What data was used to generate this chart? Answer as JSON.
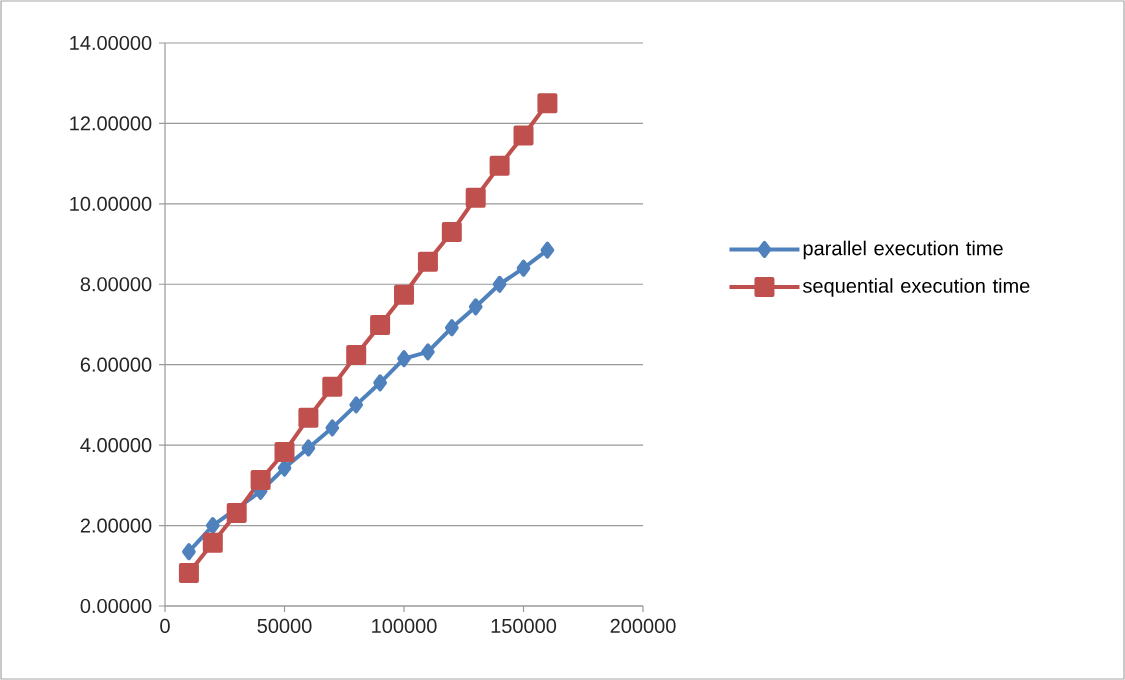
{
  "chart_data": {
    "type": "line",
    "x": [
      10000,
      20000,
      30000,
      40000,
      50000,
      60000,
      70000,
      80000,
      90000,
      100000,
      110000,
      120000,
      130000,
      140000,
      150000,
      160000
    ],
    "series": [
      {
        "name": "parallel execution time",
        "color": "#4f81bd",
        "marker": "diamond",
        "values": [
          1.35,
          2.0,
          null,
          2.85,
          3.43,
          3.93,
          4.43,
          5.0,
          5.55,
          6.15,
          6.32,
          6.92,
          7.44,
          8.0,
          8.4,
          8.85
        ]
      },
      {
        "name": "sequential execution time",
        "color": "#c0504d",
        "marker": "square",
        "values": [
          0.82,
          1.57,
          2.31,
          3.13,
          3.83,
          4.68,
          5.45,
          6.24,
          6.99,
          7.74,
          8.56,
          9.3,
          10.15,
          10.95,
          11.7,
          12.5
        ]
      }
    ],
    "xlim": [
      0,
      200000
    ],
    "xticks": [
      0,
      50000,
      100000,
      150000,
      200000
    ],
    "ylim": [
      0,
      14
    ],
    "yticks": [
      {
        "value": 0,
        "label": "0.00000"
      },
      {
        "value": 2,
        "label": "2.00000"
      },
      {
        "value": 4,
        "label": "4.00000"
      },
      {
        "value": 6,
        "label": "6.00000"
      },
      {
        "value": 8,
        "label": "8.00000"
      },
      {
        "value": 10,
        "label": "10.00000"
      },
      {
        "value": 12,
        "label": "12.00000"
      },
      {
        "value": 14,
        "label": "14.00000"
      }
    ],
    "grid": "y",
    "legend": "right",
    "line_style": "solid"
  }
}
